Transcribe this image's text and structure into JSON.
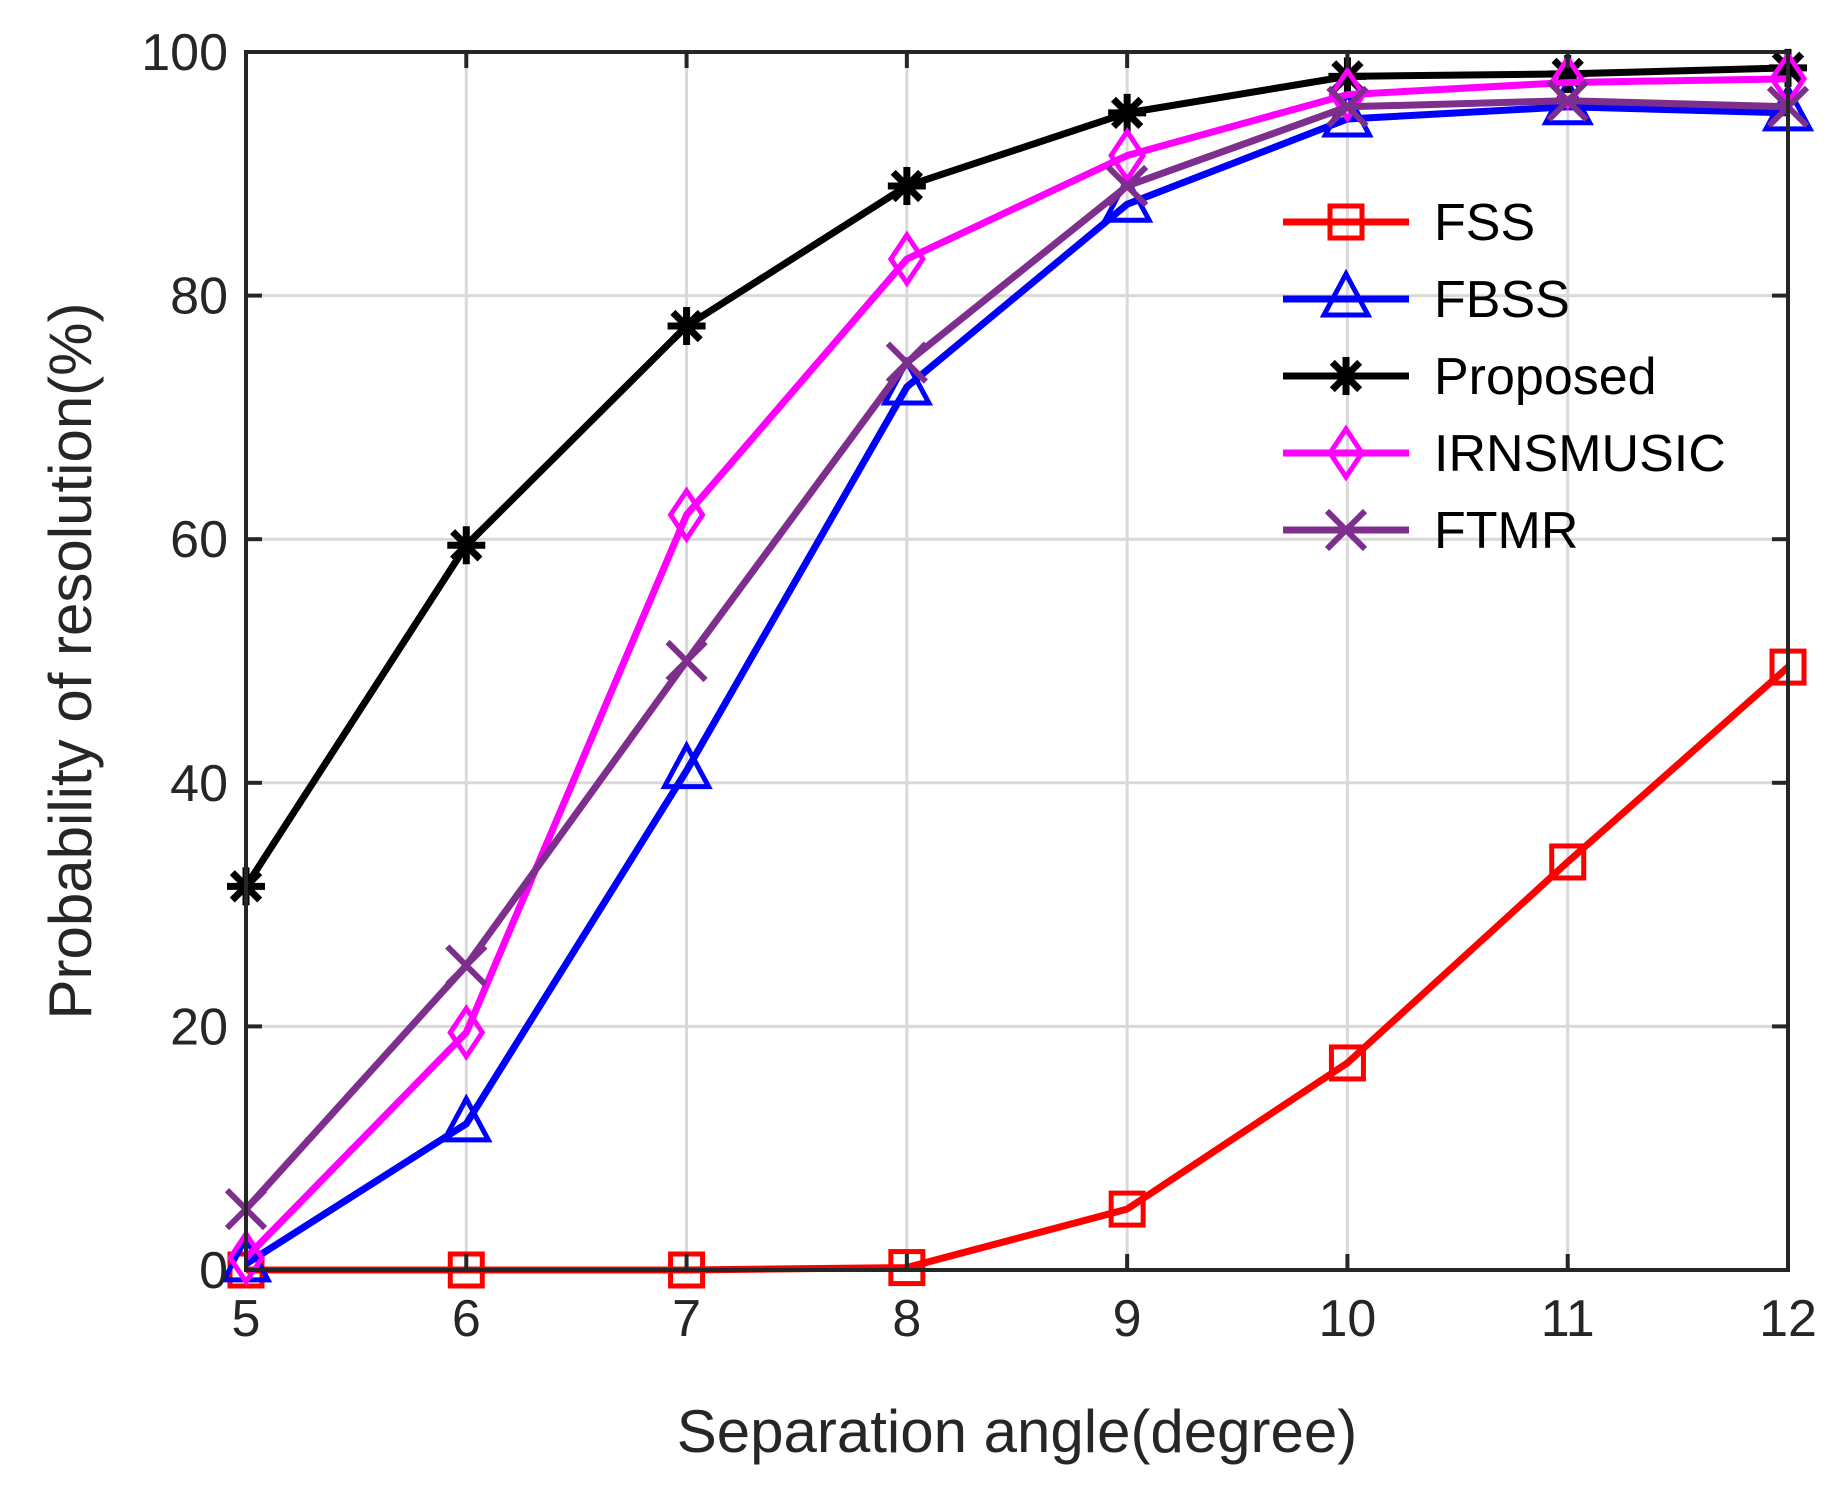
{
  "chart_data": {
    "type": "line",
    "title": "",
    "xlabel": "Separation angle(degree)",
    "ylabel": "Probability of resolution(%)",
    "xlim": [
      5,
      12
    ],
    "ylim": [
      0,
      100
    ],
    "xticks": [
      5,
      6,
      7,
      8,
      9,
      10,
      11,
      12
    ],
    "yticks": [
      0,
      20,
      40,
      60,
      80,
      100
    ],
    "grid": true,
    "legend_position": "top-right",
    "x": [
      5,
      6,
      7,
      8,
      9,
      10,
      11,
      12
    ],
    "series": [
      {
        "name": "FSS",
        "color": "#ff0000",
        "marker": "square",
        "values": [
          0,
          0,
          0,
          0.2,
          5,
          17,
          33.5,
          49.5
        ]
      },
      {
        "name": "FBSS",
        "color": "#0000ff",
        "marker": "triangle",
        "values": [
          0.5,
          12,
          41,
          72.5,
          87.5,
          94.5,
          95.5,
          95
        ]
      },
      {
        "name": "Proposed",
        "color": "#000000",
        "marker": "asterisk",
        "values": [
          31.5,
          59.5,
          77.5,
          89,
          95,
          98,
          98.2,
          98.7
        ]
      },
      {
        "name": "IRNSMUSIC",
        "color": "#ff00ff",
        "marker": "diamond",
        "values": [
          1,
          19.5,
          62,
          83,
          91.5,
          96.5,
          97.5,
          97.8
        ]
      },
      {
        "name": "FTMR",
        "color": "#7e2f8e",
        "marker": "x",
        "values": [
          5,
          25,
          50,
          74.5,
          89,
          95.5,
          96,
          95.5
        ]
      }
    ]
  }
}
